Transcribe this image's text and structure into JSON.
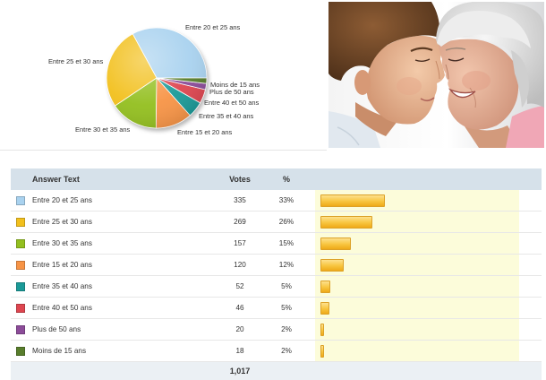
{
  "chart_data": {
    "type": "pie",
    "categories": [
      "Entre 20 et 25 ans",
      "Entre 25 et 30 ans",
      "Entre 30 et 35 ans",
      "Entre 15 et 20 ans",
      "Entre 35 et 40 ans",
      "Entre 40 et 50 ans",
      "Plus de 50 ans",
      "Moins de 15 ans"
    ],
    "values": [
      335,
      269,
      157,
      120,
      52,
      46,
      20,
      18
    ],
    "colors": [
      "#a9d2ef",
      "#f2c01d",
      "#93bf1f",
      "#f79446",
      "#1b9a98",
      "#de4650",
      "#8c4c99",
      "#587d2c"
    ]
  },
  "poll": {
    "columns": {
      "answer": "Answer Text",
      "votes": "Votes",
      "percent": "%"
    },
    "rows": [
      {
        "label": "Entre 20 et 25 ans",
        "votes": 335,
        "percent": "33%",
        "color": "#a9d2ef"
      },
      {
        "label": "Entre 25 et 30 ans",
        "votes": 269,
        "percent": "26%",
        "color": "#f2c01d"
      },
      {
        "label": "Entre 30 et 35 ans",
        "votes": 157,
        "percent": "15%",
        "color": "#93bf1f"
      },
      {
        "label": "Entre 15 et 20 ans",
        "votes": 120,
        "percent": "12%",
        "color": "#f79446"
      },
      {
        "label": "Entre 35 et 40 ans",
        "votes": 52,
        "percent": "5%",
        "color": "#1b9a98"
      },
      {
        "label": "Entre 40 et 50 ans",
        "votes": 46,
        "percent": "5%",
        "color": "#de4650"
      },
      {
        "label": "Plus de 50 ans",
        "votes": 20,
        "percent": "2%",
        "color": "#8c4c99"
      },
      {
        "label": "Moins de 15 ans",
        "votes": 18,
        "percent": "2%",
        "color": "#587d2c"
      }
    ],
    "total_votes": "1,017"
  }
}
